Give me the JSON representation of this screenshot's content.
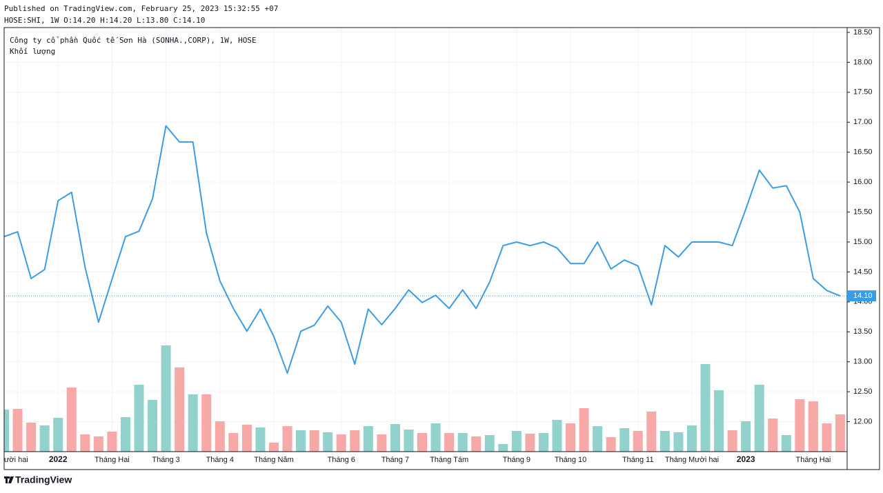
{
  "header": {
    "published": "Published on TradingView.com, February 25, 2023 15:32:55 +07",
    "ohlc": "HOSE:SHI, 1W O:14.20 H:14.20 L:13.80 C:14.10"
  },
  "logo": "TradingView",
  "chart_data": {
    "type": "line",
    "grid": true,
    "categories": [
      null,
      "ười hai",
      null,
      null,
      "2022",
      null,
      null,
      null,
      "Tháng Hai",
      null,
      null,
      null,
      "Tháng 3",
      null,
      null,
      null,
      "Tháng 4",
      null,
      null,
      null,
      "Tháng Năm",
      null,
      null,
      null,
      null,
      "Tháng 6",
      null,
      null,
      null,
      "Tháng 7",
      null,
      null,
      null,
      "Tháng Tám",
      null,
      null,
      null,
      null,
      "Tháng 9",
      null,
      null,
      null,
      "Tháng 10",
      null,
      null,
      null,
      null,
      "Tháng 11",
      null,
      null,
      null,
      "Tháng Mười hai",
      null,
      null,
      null,
      "2023",
      null,
      null,
      null,
      null,
      "Tháng Hai",
      null,
      null
    ],
    "ylim": [
      11.5,
      18.58
    ],
    "yticks": [
      {
        "value": 12,
        "label": "12.00"
      },
      {
        "value": 12.5,
        "label": "12.50"
      },
      {
        "value": 13,
        "label": "13.00"
      },
      {
        "value": 13.5,
        "label": "13.50"
      },
      {
        "value": 14,
        "label": "14.00"
      },
      {
        "value": 14.5,
        "label": "14.50"
      },
      {
        "value": 15,
        "label": "15.00"
      },
      {
        "value": 15.5,
        "label": "15.50"
      },
      {
        "value": 16,
        "label": "16.00"
      },
      {
        "value": 16.5,
        "label": "16.50"
      },
      {
        "value": 17,
        "label": "17.00"
      },
      {
        "value": 17.5,
        "label": "17.50"
      },
      {
        "value": 18,
        "label": "18.00"
      },
      {
        "value": 18.5,
        "label": "18.50"
      }
    ],
    "price_line": {
      "value": 14.1,
      "label": "14.10"
    },
    "series": [
      {
        "name": "Công ty cổ phần Quốc tế Sơn Hà (SONHA.,CORP), 1W, HOSE",
        "color": "#3a9be6",
        "values": [
          15.09,
          15.17,
          14.39,
          14.54,
          15.69,
          15.83,
          14.58,
          13.66,
          14.38,
          15.09,
          15.18,
          15.72,
          16.94,
          16.67,
          16.67,
          15.15,
          14.35,
          13.89,
          13.51,
          13.88,
          13.42,
          12.81,
          13.51,
          13.61,
          13.93,
          13.66,
          12.96,
          13.88,
          13.62,
          13.89,
          14.2,
          13.99,
          14.11,
          13.89,
          14.2,
          13.89,
          14.33,
          14.94,
          15.0,
          14.94,
          15.0,
          14.9,
          14.64,
          14.64,
          15.0,
          14.55,
          14.7,
          14.6,
          13.95,
          14.94,
          14.75,
          15.0,
          15.0,
          15.0,
          14.94,
          15.55,
          16.2,
          15.9,
          15.94,
          15.5,
          14.39,
          14.19,
          14.1
        ]
      },
      {
        "name": "Khối lượng",
        "type": "bar",
        "values": [
          61,
          62,
          42,
          38,
          49,
          93,
          25,
          22,
          29,
          50,
          97,
          75,
          154,
          122,
          83,
          83,
          44,
          27,
          39,
          35,
          13,
          37,
          31,
          31,
          28,
          25,
          31,
          37,
          25,
          40,
          32,
          27,
          41,
          27,
          27,
          22,
          24,
          11,
          30,
          26,
          27,
          46,
          41,
          63,
          37,
          21,
          34,
          30,
          58,
          30,
          28,
          38,
          127,
          89,
          31,
          44,
          97,
          48,
          24,
          76,
          73,
          41,
          54
        ],
        "colors": [
          "#92d2cc",
          "#f7a9a7",
          "#f7a9a7",
          "#92d2cc",
          "#92d2cc",
          "#f7a9a7",
          "#f7a9a7",
          "#f7a9a7",
          "#f7a9a7",
          "#92d2cc",
          "#92d2cc",
          "#92d2cc",
          "#92d2cc",
          "#f7a9a7",
          "#92d2cc",
          "#f7a9a7",
          "#f7a9a7",
          "#f7a9a7",
          "#f7a9a7",
          "#92d2cc",
          "#f7a9a7",
          "#f7a9a7",
          "#92d2cc",
          "#f7a9a7",
          "#92d2cc",
          "#f7a9a7",
          "#f7a9a7",
          "#92d2cc",
          "#f7a9a7",
          "#92d2cc",
          "#92d2cc",
          "#f7a9a7",
          "#92d2cc",
          "#f7a9a7",
          "#92d2cc",
          "#f7a9a7",
          "#92d2cc",
          "#92d2cc",
          "#92d2cc",
          "#f7a9a7",
          "#92d2cc",
          "#92d2cc",
          "#f7a9a7",
          "#f7a9a7",
          "#92d2cc",
          "#f7a9a7",
          "#92d2cc",
          "#f7a9a7",
          "#f7a9a7",
          "#92d2cc",
          "#92d2cc",
          "#92d2cc",
          "#92d2cc",
          "#92d2cc",
          "#f7a9a7",
          "#92d2cc",
          "#92d2cc",
          "#f7a9a7",
          "#92d2cc",
          "#f7a9a7",
          "#f7a9a7",
          "#f7a9a7",
          "#f7a9a7"
        ]
      }
    ]
  }
}
